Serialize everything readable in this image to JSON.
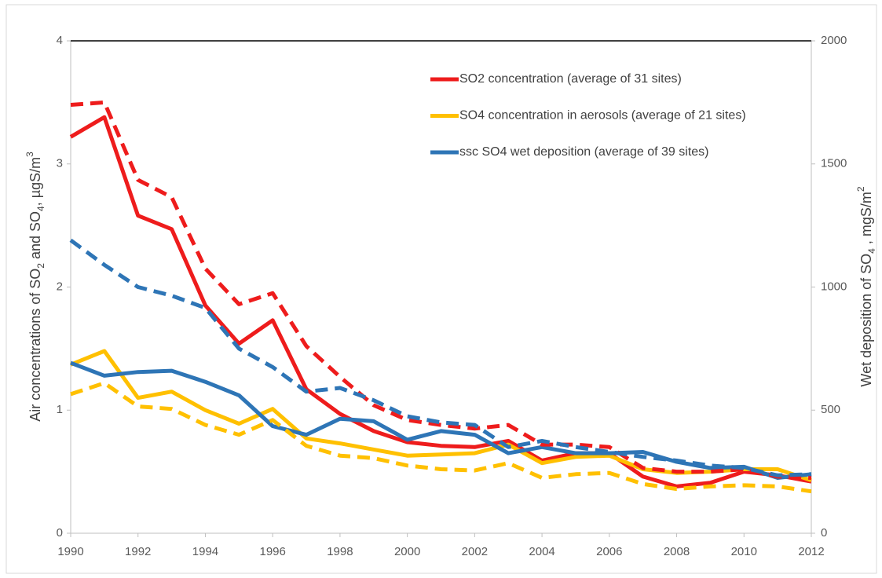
{
  "chart_data": {
    "type": "line",
    "x": [
      1990,
      1991,
      1992,
      1993,
      1994,
      1995,
      1996,
      1997,
      1998,
      1999,
      2000,
      2001,
      2002,
      2003,
      2004,
      2005,
      2006,
      2007,
      2008,
      2009,
      2010,
      2011,
      2012
    ],
    "xlim": [
      1990,
      2012
    ],
    "xticks": [
      1990,
      1992,
      1994,
      1996,
      1998,
      2000,
      2002,
      2004,
      2006,
      2008,
      2010,
      2012
    ],
    "ylim": [
      0,
      4
    ],
    "yticks": [
      0,
      1,
      2,
      3,
      4
    ],
    "y2lim": [
      0,
      2000
    ],
    "y2ticks": [
      0,
      500,
      1000,
      1500,
      2000
    ],
    "y_label": [
      {
        "text": "Air concentrations of SO"
      },
      {
        "text": "2",
        "sub": true
      },
      {
        "text": " and SO"
      },
      {
        "text": "4",
        "sub": true
      },
      {
        "text": ", µgS/m"
      },
      {
        "text": "3",
        "sup": true
      }
    ],
    "y2_label": [
      {
        "text": "Wet deposition of SO"
      },
      {
        "text": "4",
        "sub": true
      },
      {
        "text": " , mgS/m"
      },
      {
        "text": "2",
        "sup": true
      }
    ],
    "series": [
      {
        "name": "SO2 concentration (average of 31 sites)",
        "color": "#ee1c1c",
        "dash": false,
        "values": [
          3.22,
          3.38,
          2.58,
          2.47,
          1.85,
          1.54,
          1.73,
          1.17,
          0.97,
          0.83,
          0.74,
          0.71,
          0.7,
          0.75,
          0.59,
          0.65,
          0.65,
          0.46,
          0.38,
          0.41,
          0.5,
          0.47,
          0.42
        ]
      },
      {
        "name": "SO4 concentration in aerosols (average of 21 sites)",
        "color": "#ffc000",
        "dash": false,
        "values": [
          1.37,
          1.48,
          1.1,
          1.15,
          1.0,
          0.89,
          1.01,
          0.77,
          0.73,
          0.68,
          0.63,
          0.64,
          0.65,
          0.72,
          0.57,
          0.62,
          0.63,
          0.52,
          0.49,
          0.5,
          0.52,
          0.52,
          0.43
        ]
      },
      {
        "name": "ssc SO4 wet deposition (average of 39 sites)",
        "color": "#2e75b6",
        "dash": false,
        "axis": "y2",
        "values": [
          692,
          640,
          655,
          660,
          615,
          560,
          435,
          400,
          465,
          455,
          380,
          415,
          400,
          325,
          350,
          325,
          325,
          330,
          290,
          265,
          270,
          225,
          240
        ]
      },
      {
        "color": "#ee1c1c",
        "dash": true,
        "values": [
          3.48,
          3.5,
          2.87,
          2.73,
          2.15,
          1.86,
          1.95,
          1.52,
          1.27,
          1.04,
          0.92,
          0.88,
          0.85,
          0.88,
          0.72,
          0.72,
          0.7,
          0.53,
          0.5,
          0.5,
          0.52,
          0.46,
          0.45
        ]
      },
      {
        "color": "#ffc000",
        "dash": true,
        "values": [
          1.13,
          1.22,
          1.03,
          1.01,
          0.88,
          0.8,
          0.92,
          0.71,
          0.63,
          0.61,
          0.55,
          0.52,
          0.51,
          0.57,
          0.45,
          0.48,
          0.49,
          0.4,
          0.36,
          0.38,
          0.39,
          0.38,
          0.34
        ]
      },
      {
        "color": "#2e75b6",
        "dash": true,
        "axis": "y2",
        "values": [
          1190,
          1090,
          1000,
          965,
          915,
          750,
          675,
          575,
          590,
          540,
          475,
          450,
          440,
          350,
          375,
          350,
          330,
          310,
          295,
          275,
          265,
          235,
          240
        ]
      }
    ]
  }
}
